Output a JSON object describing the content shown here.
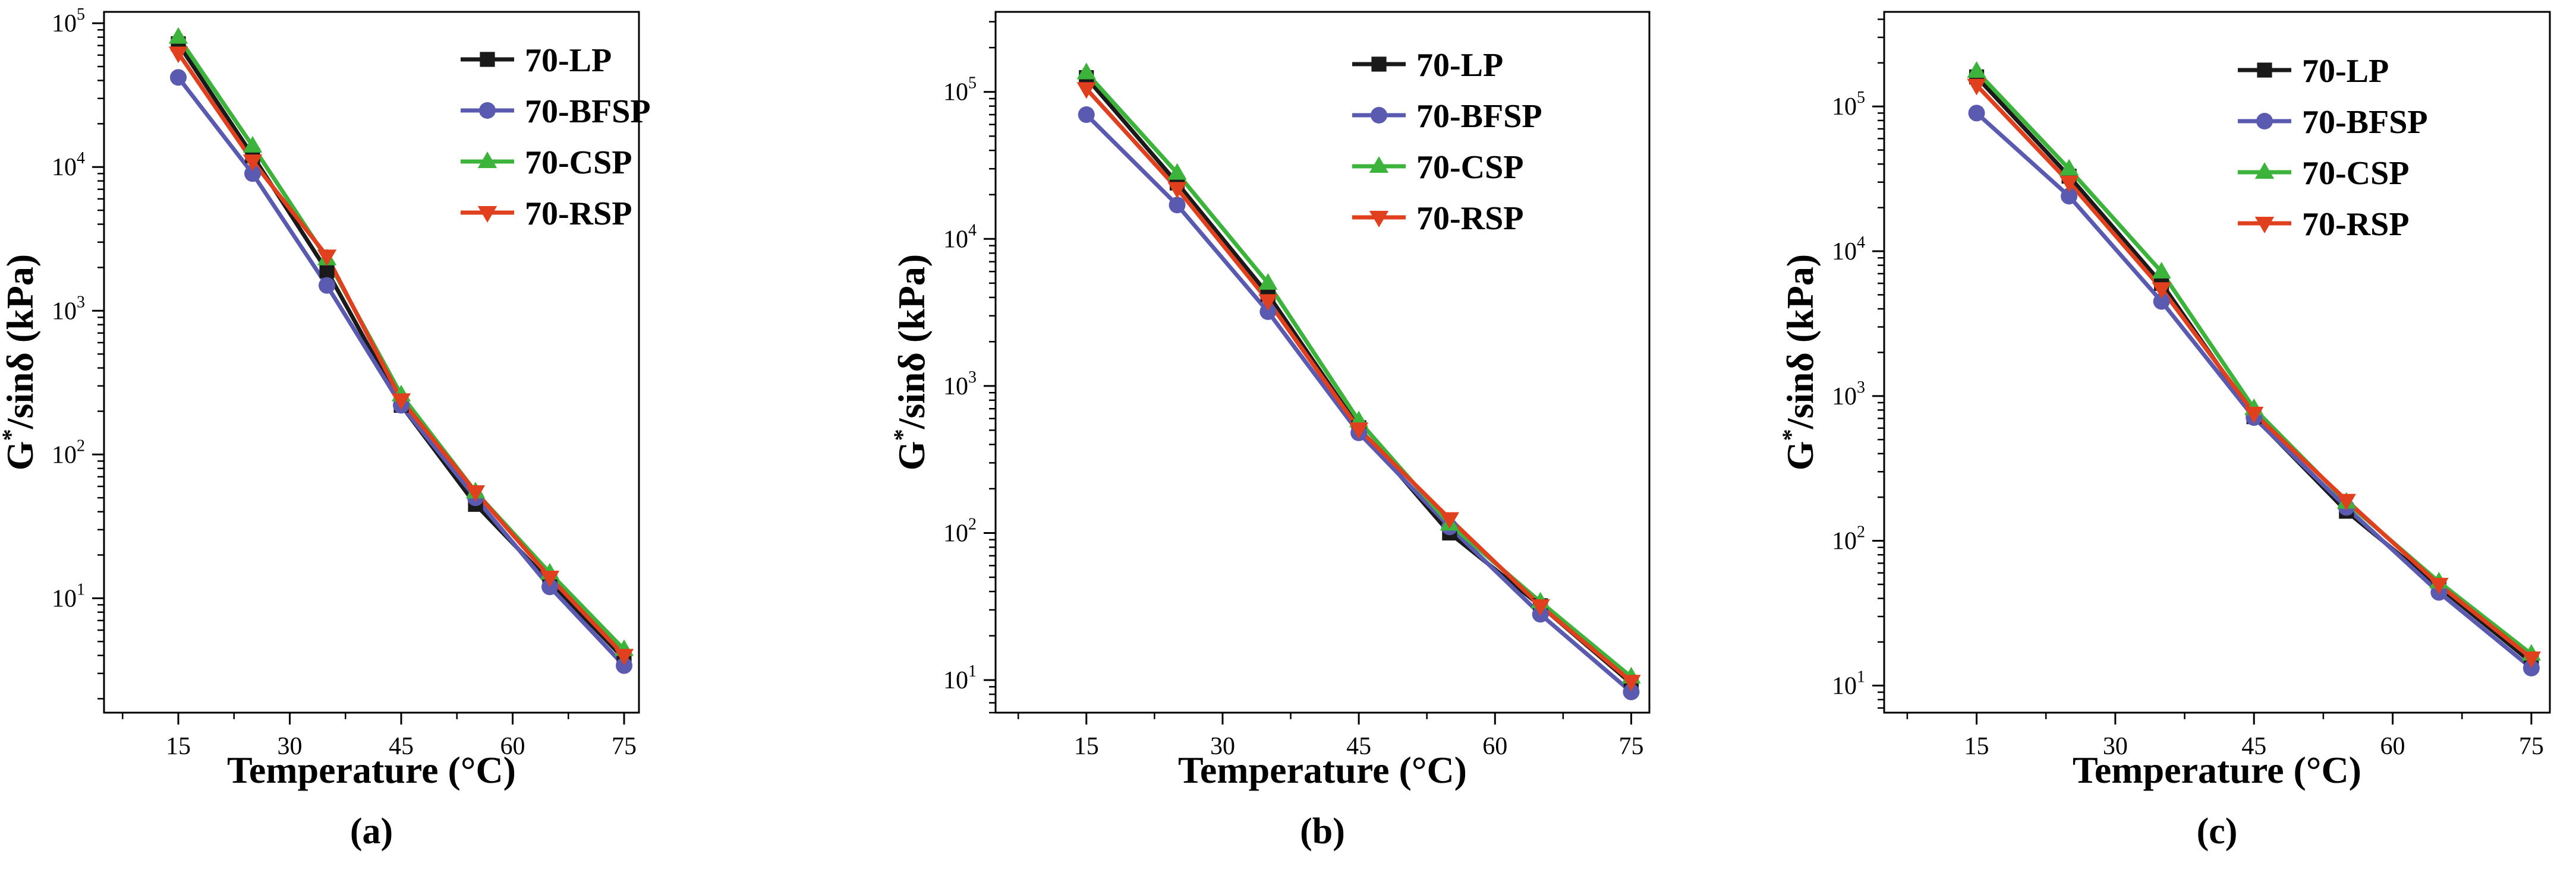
{
  "figure": {
    "x_axis_title": "Temperature (°C)",
    "y_axis_title": {
      "main": "G",
      "sup": "*",
      "rest": "/sinδ (kPa)"
    }
  },
  "colors": {
    "70-LP": "#1a1a1a",
    "70-BFSP": "#5a5ab0",
    "70-CSP": "#3cb43c",
    "70-RSP": "#e0401e",
    "axis": "#000000"
  },
  "chart_data": [
    {
      "type": "line",
      "panel_label": "(a)",
      "title": "",
      "xlabel": "Temperature (°C)",
      "ylabel": "G*/sinδ (kPa)",
      "y_scale": "log",
      "xlim": [
        5,
        77
      ],
      "ylim": [
        1.6,
        120000
      ],
      "x_ticks": [
        15,
        30,
        45,
        60,
        75
      ],
      "x_tick_labels": [
        "15",
        "30",
        "45",
        "60",
        "75"
      ],
      "y_ticks": [
        10,
        100,
        1000,
        10000,
        100000
      ],
      "y_tick_labels": [
        {
          "base": "10",
          "exp": "1"
        },
        {
          "base": "10",
          "exp": "2"
        },
        {
          "base": "10",
          "exp": "3"
        },
        {
          "base": "10",
          "exp": "4"
        },
        {
          "base": "10",
          "exp": "5"
        }
      ],
      "legend": "top-right",
      "x": [
        15,
        25,
        35,
        45,
        55,
        65,
        75
      ],
      "series": [
        {
          "name": "70-LP",
          "marker": "square",
          "values": [
            72000,
            12000,
            1900,
            220,
            45,
            13,
            3.8
          ]
        },
        {
          "name": "70-BFSP",
          "marker": "circle",
          "values": [
            42000,
            9000,
            1500,
            220,
            50,
            12,
            3.4
          ]
        },
        {
          "name": "70-CSP",
          "marker": "triangle-up",
          "values": [
            80000,
            14000,
            2300,
            260,
            55,
            15,
            4.4
          ]
        },
        {
          "name": "70-RSP",
          "marker": "triangle-down",
          "values": [
            62000,
            11000,
            2400,
            240,
            55,
            14,
            4.0
          ]
        }
      ]
    },
    {
      "type": "line",
      "panel_label": "(b)",
      "title": "",
      "xlabel": "Temperature (°C)",
      "ylabel": "G*/sinδ (kPa)",
      "y_scale": "log",
      "xlim": [
        5,
        77
      ],
      "ylim": [
        6,
        350000
      ],
      "x_ticks": [
        15,
        30,
        45,
        60,
        75
      ],
      "x_tick_labels": [
        "15",
        "30",
        "45",
        "60",
        "75"
      ],
      "y_ticks": [
        10,
        100,
        1000,
        10000,
        100000
      ],
      "y_tick_labels": [
        {
          "base": "10",
          "exp": "1"
        },
        {
          "base": "10",
          "exp": "2"
        },
        {
          "base": "10",
          "exp": "3"
        },
        {
          "base": "10",
          "exp": "4"
        },
        {
          "base": "10",
          "exp": "5"
        }
      ],
      "legend": "top-right",
      "x": [
        15,
        25,
        35,
        45,
        55,
        65,
        75
      ],
      "series": [
        {
          "name": "70-LP",
          "marker": "square",
          "values": [
            125000,
            24000,
            4200,
            520,
            100,
            32,
            9.5
          ]
        },
        {
          "name": "70-BFSP",
          "marker": "circle",
          "values": [
            70000,
            17000,
            3200,
            480,
            110,
            28,
            8.3
          ]
        },
        {
          "name": "70-CSP",
          "marker": "triangle-up",
          "values": [
            135000,
            28000,
            5000,
            580,
            115,
            34,
            10.5
          ]
        },
        {
          "name": "70-RSP",
          "marker": "triangle-down",
          "values": [
            105000,
            22000,
            3800,
            510,
            125,
            32,
            9.8
          ]
        }
      ]
    },
    {
      "type": "line",
      "panel_label": "(c)",
      "title": "",
      "xlabel": "Temperature (°C)",
      "ylabel": "G*/sinδ (kPa)",
      "y_scale": "log",
      "xlim": [
        5,
        77
      ],
      "ylim": [
        6.5,
        450000
      ],
      "x_ticks": [
        15,
        30,
        45,
        60,
        75
      ],
      "x_tick_labels": [
        "15",
        "30",
        "45",
        "60",
        "75"
      ],
      "y_ticks": [
        10,
        100,
        1000,
        10000,
        100000
      ],
      "y_tick_labels": [
        {
          "base": "10",
          "exp": "1"
        },
        {
          "base": "10",
          "exp": "2"
        },
        {
          "base": "10",
          "exp": "3"
        },
        {
          "base": "10",
          "exp": "4"
        },
        {
          "base": "10",
          "exp": "5"
        }
      ],
      "legend": "top-right",
      "x": [
        15,
        25,
        35,
        45,
        55,
        65,
        75
      ],
      "series": [
        {
          "name": "70-LP",
          "marker": "square",
          "values": [
            160000,
            33000,
            6000,
            720,
            160,
            48,
            14.5
          ]
        },
        {
          "name": "70-BFSP",
          "marker": "circle",
          "values": [
            90000,
            24000,
            4500,
            710,
            170,
            44,
            13.2
          ]
        },
        {
          "name": "70-CSP",
          "marker": "triangle-up",
          "values": [
            175000,
            37000,
            7200,
            820,
            185,
            52,
            16.5
          ]
        },
        {
          "name": "70-RSP",
          "marker": "triangle-down",
          "values": [
            140000,
            30000,
            5500,
            760,
            190,
            50,
            15.5
          ]
        }
      ]
    }
  ]
}
